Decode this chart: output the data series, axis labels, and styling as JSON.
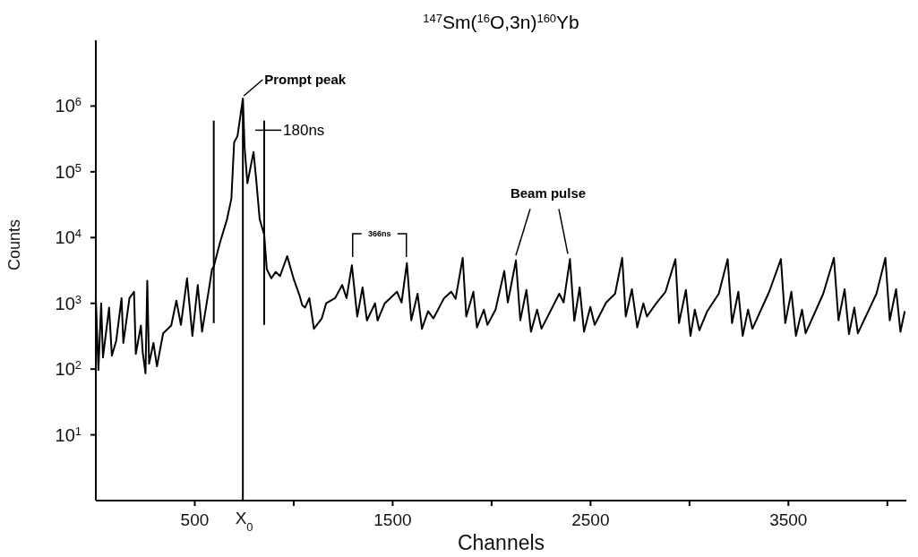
{
  "chart_data": {
    "type": "line",
    "title": "$^{147}$Sm($^{16}$O,3n)$^{160}$Yb",
    "xlabel": "Channels",
    "ylabel": "Counts",
    "log": "y",
    "marker": "none",
    "line_style": "solid",
    "xlim": [
      0,
      4096
    ],
    "xticks": [
      {
        "value": 500,
        "label": "500"
      },
      {
        "value": 1000,
        "label": null
      },
      {
        "value": 1500,
        "label": "1500"
      },
      {
        "value": 2000,
        "label": null
      },
      {
        "value": 2500,
        "label": "2500"
      },
      {
        "value": 3000,
        "label": null
      },
      {
        "value": 3500,
        "label": "3500"
      },
      {
        "value": 4000,
        "label": null
      }
    ],
    "ylim": [
      1,
      10000000
    ],
    "yticks": [
      {
        "value": 10,
        "label": "10$^{1}$"
      },
      {
        "value": 100,
        "label": "10$^{2}$"
      },
      {
        "value": 1000,
        "label": "10$^{3}$"
      },
      {
        "value": 10000,
        "label": "10$^{4}$"
      },
      {
        "value": 100000,
        "label": "10$^{5}$"
      },
      {
        "value": 1000000,
        "label": "10$^{6}$"
      }
    ],
    "series": [
      {
        "color": "#000000",
        "x": [
          0,
          13,
          27,
          36,
          67,
          81,
          103,
          130,
          139,
          170,
          193,
          202,
          228,
          237,
          251,
          260,
          269,
          291,
          309,
          340,
          381,
          407,
          430,
          461,
          488,
          515,
          537,
          573,
          587,
          596,
          627,
          663,
          685,
          699,
          716,
          743,
          752,
          766,
          797,
          811,
          828,
          851,
          864,
          887,
          909,
          931,
          967,
          999,
          1030,
          1043,
          1057,
          1079,
          1102,
          1142,
          1164,
          1209,
          1245,
          1267,
          1294,
          1321,
          1348,
          1370,
          1411,
          1424,
          1460,
          1522,
          1545,
          1572,
          1594,
          1626,
          1648,
          1679,
          1706,
          1760,
          1796,
          1818,
          1854,
          1872,
          1908,
          1926,
          1961,
          1979,
          2020,
          2064,
          2082,
          2123,
          2145,
          2176,
          2199,
          2230,
          2252,
          2342,
          2364,
          2396,
          2418,
          2445,
          2467,
          2499,
          2521,
          2579,
          2624,
          2660,
          2678,
          2709,
          2736,
          2767,
          2785,
          2835,
          2879,
          2929,
          2947,
          2982,
          3005,
          3027,
          3050,
          3090,
          3148,
          3193,
          3215,
          3247,
          3269,
          3296,
          3318,
          3403,
          3462,
          3484,
          3515,
          3538,
          3569,
          3587,
          3676,
          3730,
          3753,
          3784,
          3806,
          3833,
          3851,
          3945,
          3990,
          4012,
          4044,
          4066,
          4088
        ],
        "values": [
          1200,
          97,
          1000,
          150,
          860,
          160,
          270,
          1200,
          250,
          1200,
          1500,
          170,
          460,
          180,
          86,
          2200,
          120,
          250,
          110,
          350,
          460,
          1100,
          470,
          2400,
          320,
          1900,
          370,
          1750,
          3300,
          3600,
          8300,
          19000,
          39000,
          280000,
          350000,
          1300000,
          230000,
          67000,
          200000,
          73000,
          19000,
          11000,
          3300,
          2400,
          3000,
          2600,
          5200,
          2400,
          1300,
          940,
          860,
          1200,
          410,
          590,
          1000,
          1200,
          1900,
          1200,
          3800,
          630,
          1750,
          550,
          1000,
          550,
          1000,
          1500,
          1030,
          4100,
          550,
          1400,
          410,
          760,
          590,
          1200,
          1500,
          1170,
          4900,
          630,
          1500,
          430,
          800,
          470,
          800,
          3100,
          1030,
          4500,
          550,
          1600,
          370,
          800,
          410,
          1400,
          1030,
          4700,
          540,
          1750,
          370,
          880,
          470,
          1030,
          1400,
          4900,
          630,
          1640,
          430,
          1000,
          630,
          1030,
          1500,
          4700,
          500,
          1600,
          320,
          800,
          390,
          760,
          1400,
          4700,
          500,
          1500,
          320,
          800,
          410,
          1500,
          4700,
          500,
          1500,
          320,
          800,
          350,
          1400,
          4900,
          550,
          1640,
          340,
          860,
          350,
          1400,
          4900,
          550,
          1640,
          370,
          760
        ]
      },
      {
        "color": "#000000",
        "x": [
          596,
          596
        ],
        "values": [
          500,
          600000
        ]
      },
      {
        "color": "#000000",
        "x": [
          851,
          851
        ],
        "values": [
          470,
          600000
        ]
      },
      {
        "color": "#000000",
        "x": [
          743,
          743
        ],
        "values": [
          1,
          1300000
        ]
      }
    ],
    "annotations": [
      "Prompt peak",
      "180ns",
      "366ns",
      "Beam pulse",
      "X$_{0}$"
    ]
  }
}
